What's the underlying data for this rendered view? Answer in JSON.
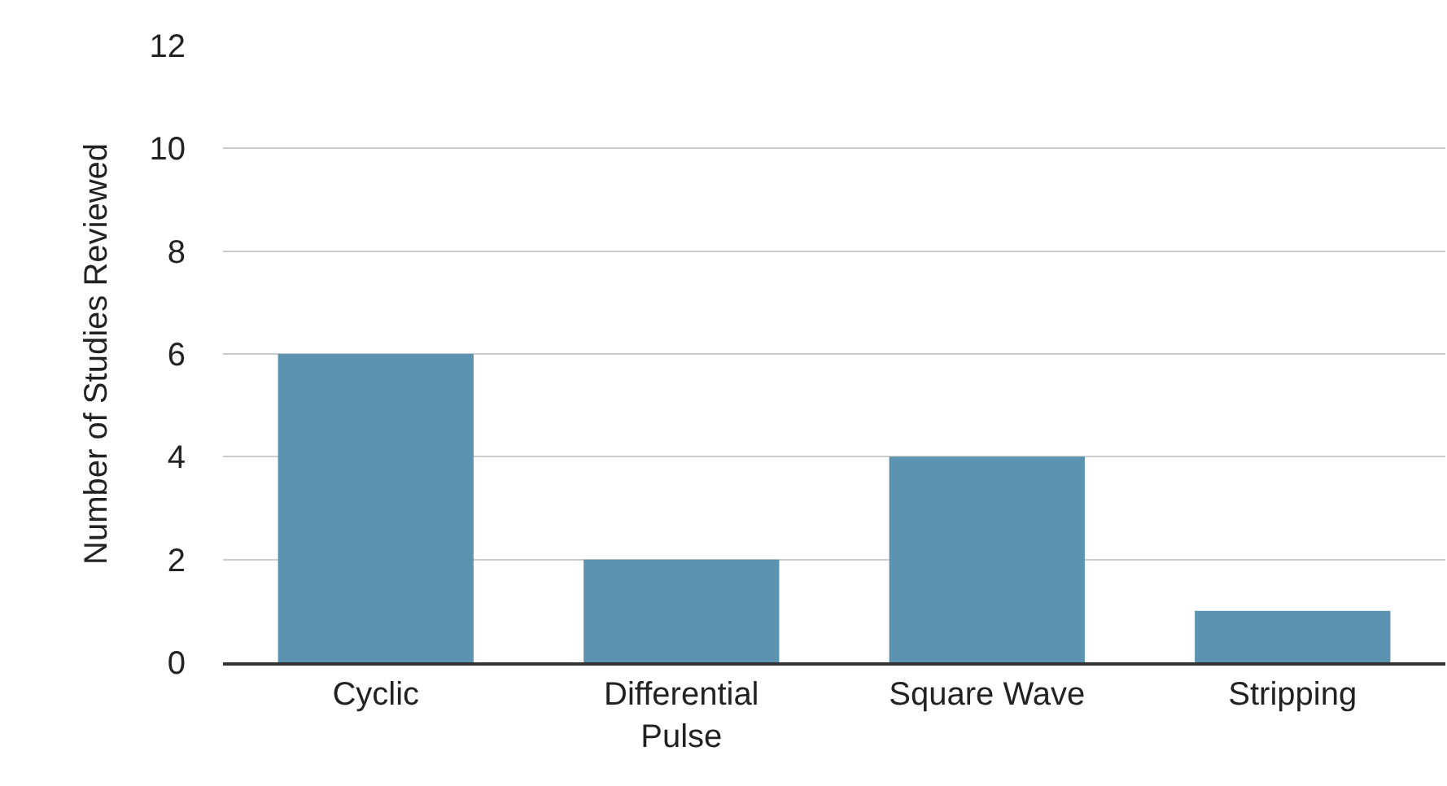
{
  "chart_data": {
    "type": "bar",
    "ylabel": "Number of Studies Reviewed",
    "categories": [
      "Cyclic",
      "Differential Pulse",
      "Square Wave",
      "Stripping"
    ],
    "values": [
      6,
      2,
      4,
      1
    ],
    "color": "#5b93b0",
    "ylim": [
      0,
      12
    ],
    "yticks": [
      0,
      2,
      4,
      6,
      8,
      10,
      12
    ],
    "grid": "y",
    "legend": false
  }
}
